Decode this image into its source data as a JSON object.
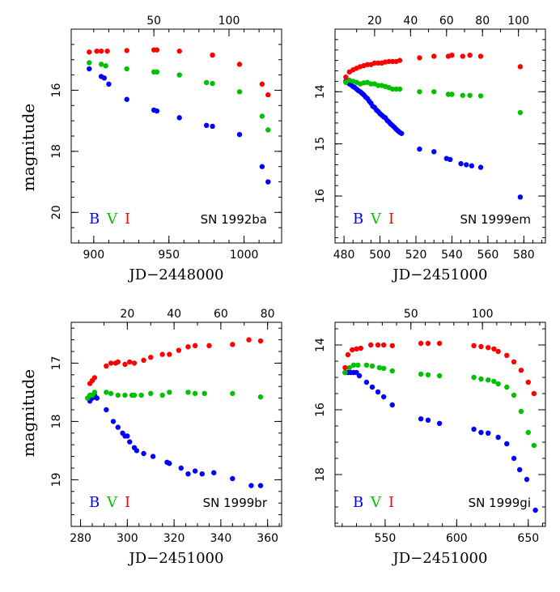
{
  "figure": {
    "ylabel_left": "magnitude",
    "band_colors": {
      "B": "#0000ff",
      "V": "#00c000",
      "I": "#ff0000"
    }
  },
  "chart_data": [
    {
      "type": "scatter",
      "title": "SN 1992ba",
      "xlabel": "JD−2448000",
      "ylabel": "magnitude",
      "xlim": [
        885,
        1025
      ],
      "ylim": [
        21,
        14
      ],
      "invert_y": true,
      "xticks": [
        900,
        950,
        1000
      ],
      "yticks": [
        16,
        18,
        20
      ],
      "top_axis": {
        "ticks": [
          50,
          100
        ],
        "offset": 890
      },
      "legend": [
        {
          "label": "B",
          "band": "B"
        },
        {
          "label": "V",
          "band": "V"
        },
        {
          "label": "I",
          "band": "I"
        }
      ],
      "series": [
        {
          "name": "B",
          "color": "#0000ff",
          "x": [
            897,
            905,
            907,
            910,
            922,
            940,
            942,
            957,
            975,
            979,
            997,
            1012,
            1016
          ],
          "y": [
            15.3,
            15.55,
            15.6,
            15.8,
            16.3,
            16.65,
            16.68,
            16.9,
            17.15,
            17.18,
            17.45,
            18.5,
            19.0
          ]
        },
        {
          "name": "V",
          "color": "#00c000",
          "x": [
            897,
            905,
            908,
            922,
            940,
            942,
            957,
            975,
            979,
            997,
            1012,
            1016
          ],
          "y": [
            15.1,
            15.15,
            15.2,
            15.3,
            15.4,
            15.4,
            15.5,
            15.75,
            15.78,
            16.05,
            16.85,
            17.3
          ]
        },
        {
          "name": "I",
          "color": "#ff0000",
          "x": [
            897,
            902,
            905,
            909,
            922,
            940,
            942,
            957,
            979,
            997,
            1012,
            1016
          ],
          "y": [
            14.75,
            14.72,
            14.72,
            14.72,
            14.7,
            14.68,
            14.68,
            14.72,
            14.85,
            15.15,
            15.8,
            16.15
          ]
        }
      ]
    },
    {
      "type": "scatter",
      "title": "SN 1999em",
      "xlabel": "JD−2451000",
      "ylabel": "",
      "xlim": [
        475,
        592
      ],
      "ylim": [
        16.9,
        12.8
      ],
      "invert_y": true,
      "xticks": [
        480,
        500,
        520,
        540,
        560,
        580
      ],
      "yticks": [
        14,
        15,
        16
      ],
      "top_axis": {
        "ticks": [
          20,
          40,
          60,
          80,
          100
        ],
        "offset": 477
      },
      "legend": [
        {
          "label": "B",
          "band": "B"
        },
        {
          "label": "V",
          "band": "V"
        },
        {
          "label": "I",
          "band": "I"
        }
      ],
      "series": [
        {
          "name": "B",
          "color": "#0000ff",
          "x": [
            481,
            482,
            483,
            484,
            485,
            486,
            487,
            488,
            489,
            490,
            491,
            492,
            493,
            494,
            495,
            496,
            497,
            498,
            499,
            500,
            501,
            502,
            503,
            504,
            505,
            506,
            507,
            508,
            509,
            510,
            511,
            512,
            522,
            530,
            537,
            539,
            545,
            548,
            551,
            556,
            578
          ],
          "y": [
            13.8,
            13.82,
            13.85,
            13.87,
            13.9,
            13.92,
            13.95,
            13.98,
            14.0,
            14.03,
            14.06,
            14.1,
            14.13,
            14.18,
            14.22,
            14.28,
            14.3,
            14.35,
            14.38,
            14.42,
            14.45,
            14.48,
            14.5,
            14.55,
            14.58,
            14.62,
            14.65,
            14.68,
            14.72,
            14.75,
            14.78,
            14.8,
            15.1,
            15.15,
            15.28,
            15.3,
            15.38,
            15.4,
            15.42,
            15.45,
            16.02
          ]
        },
        {
          "name": "V",
          "color": "#00c000",
          "x": [
            481,
            483,
            485,
            487,
            489,
            491,
            493,
            495,
            497,
            499,
            501,
            503,
            505,
            507,
            509,
            511,
            522,
            530,
            538,
            540,
            546,
            550,
            556,
            578
          ],
          "y": [
            13.82,
            13.78,
            13.8,
            13.82,
            13.85,
            13.83,
            13.82,
            13.85,
            13.85,
            13.88,
            13.88,
            13.9,
            13.92,
            13.95,
            13.95,
            13.95,
            14.0,
            14.0,
            14.05,
            14.05,
            14.07,
            14.07,
            14.08,
            14.4
          ]
        },
        {
          "name": "I",
          "color": "#ff0000",
          "x": [
            481,
            483,
            485,
            487,
            489,
            491,
            493,
            495,
            497,
            499,
            501,
            503,
            505,
            507,
            509,
            511,
            522,
            530,
            538,
            540,
            546,
            550,
            556,
            578
          ],
          "y": [
            13.72,
            13.62,
            13.58,
            13.55,
            13.52,
            13.5,
            13.48,
            13.48,
            13.45,
            13.45,
            13.45,
            13.43,
            13.42,
            13.42,
            13.42,
            13.4,
            13.35,
            13.32,
            13.32,
            13.3,
            13.32,
            13.3,
            13.32,
            13.52
          ]
        }
      ]
    },
    {
      "type": "scatter",
      "title": "SN 1999br",
      "xlabel": "JD−2451000",
      "ylabel": "magnitude",
      "xlim": [
        276,
        366
      ],
      "ylim": [
        19.8,
        16.3
      ],
      "invert_y": true,
      "xticks": [
        280,
        300,
        320,
        340,
        360
      ],
      "yticks": [
        17,
        18,
        19
      ],
      "top_axis": {
        "ticks": [
          20,
          40,
          60,
          80
        ],
        "offset": 280
      },
      "legend": [
        {
          "label": "B",
          "band": "B"
        },
        {
          "label": "V",
          "band": "V"
        },
        {
          "label": "I",
          "band": "I"
        }
      ],
      "series": [
        {
          "name": "B",
          "color": "#0000ff",
          "x": [
            284,
            285,
            286,
            287,
            291,
            294,
            296,
            298,
            299,
            300,
            301,
            303,
            304,
            307,
            311,
            317,
            318,
            323,
            326,
            329,
            332,
            337,
            345,
            353,
            357
          ],
          "y": [
            17.65,
            17.6,
            17.55,
            17.6,
            17.8,
            18.0,
            18.1,
            18.2,
            18.25,
            18.25,
            18.35,
            18.45,
            18.5,
            18.55,
            18.6,
            18.7,
            18.72,
            18.8,
            18.9,
            18.85,
            18.9,
            18.88,
            18.98,
            19.1,
            19.1
          ]
        },
        {
          "name": "V",
          "color": "#00c000",
          "x": [
            283,
            284,
            285,
            286,
            291,
            293,
            296,
            299,
            302,
            303,
            306,
            310,
            315,
            318,
            326,
            329,
            333,
            345,
            357
          ],
          "y": [
            17.6,
            17.55,
            17.55,
            17.5,
            17.5,
            17.52,
            17.55,
            17.55,
            17.55,
            17.55,
            17.55,
            17.52,
            17.55,
            17.5,
            17.5,
            17.52,
            17.52,
            17.52,
            17.58
          ]
        },
        {
          "name": "I",
          "color": "#ff0000",
          "x": [
            284,
            285,
            286,
            291,
            293,
            295,
            296,
            299,
            301,
            303,
            307,
            310,
            315,
            318,
            322,
            326,
            329,
            335,
            345,
            352,
            357
          ],
          "y": [
            17.35,
            17.3,
            17.25,
            17.05,
            17.0,
            17.0,
            16.98,
            17.02,
            16.98,
            17.0,
            16.95,
            16.9,
            16.85,
            16.85,
            16.78,
            16.72,
            16.7,
            16.7,
            16.68,
            16.6,
            16.62
          ]
        }
      ]
    },
    {
      "type": "scatter",
      "title": "SN 1999gi",
      "xlabel": "JD−2451000",
      "ylabel": "",
      "xlim": [
        515,
        662
      ],
      "ylim": [
        19.6,
        13.3
      ],
      "invert_y": true,
      "xticks": [
        550,
        600,
        650
      ],
      "yticks": [
        14,
        16,
        18
      ],
      "top_axis": {
        "ticks": [
          50,
          100
        ],
        "offset": 518
      },
      "legend": [
        {
          "label": "B",
          "band": "B"
        },
        {
          "label": "V",
          "band": "V"
        },
        {
          "label": "I",
          "band": "I"
        }
      ],
      "series": [
        {
          "name": "B",
          "color": "#0000ff",
          "x": [
            522,
            524,
            526,
            528,
            530,
            532,
            537,
            541,
            545,
            549,
            555,
            575,
            580,
            588,
            612,
            617,
            622,
            629,
            635,
            640,
            644,
            649,
            655
          ],
          "y": [
            14.85,
            14.85,
            14.85,
            14.85,
            14.85,
            14.95,
            15.15,
            15.3,
            15.45,
            15.6,
            15.85,
            16.28,
            16.32,
            16.42,
            16.6,
            16.7,
            16.72,
            16.85,
            17.05,
            17.5,
            17.85,
            18.15,
            19.1
          ]
        },
        {
          "name": "V",
          "color": "#00c000",
          "x": [
            522,
            525,
            528,
            531,
            537,
            541,
            546,
            549,
            555,
            575,
            580,
            588,
            612,
            617,
            622,
            626,
            629,
            635,
            640,
            645,
            650,
            654
          ],
          "y": [
            14.85,
            14.7,
            14.62,
            14.62,
            14.62,
            14.65,
            14.7,
            14.72,
            14.8,
            14.9,
            14.92,
            14.95,
            15.0,
            15.05,
            15.08,
            15.12,
            15.2,
            15.3,
            15.55,
            16.05,
            16.7,
            17.1
          ]
        },
        {
          "name": "I",
          "color": "#ff0000",
          "x": [
            522,
            524,
            527,
            530,
            533,
            540,
            545,
            549,
            555,
            575,
            580,
            588,
            612,
            617,
            622,
            626,
            629,
            635,
            640,
            645,
            650,
            654
          ],
          "y": [
            14.7,
            14.3,
            14.15,
            14.12,
            14.1,
            14.0,
            14.0,
            14.0,
            14.02,
            13.95,
            13.95,
            13.95,
            14.02,
            14.05,
            14.08,
            14.12,
            14.2,
            14.32,
            14.52,
            14.78,
            15.15,
            15.5
          ]
        }
      ]
    }
  ]
}
